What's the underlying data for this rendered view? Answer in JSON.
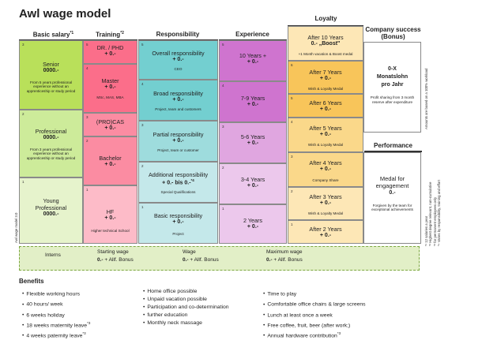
{
  "title": "Awl wage model",
  "headers": {
    "basic": "Basic salary",
    "basic_sup": "*1",
    "training": "Training",
    "training_sup": "*2",
    "responsibility": "Responsibility",
    "experience": "Experience",
    "loyalty": "Loyalty",
    "company_success_line1": "Company success",
    "company_success_line2": "(Bonus)",
    "performance": "Performance"
  },
  "basic": [
    {
      "level": "3",
      "title": "Senior",
      "value": "0000.-",
      "desc": "From 5 years professional experience without an apprenticeship or study period"
    },
    {
      "level": "2",
      "title": "Professional",
      "value": "0000.-",
      "desc": "From 3 years professional experience without an apprenticeship or study period"
    },
    {
      "level": "1",
      "title": "Young Professional",
      "value": "0000.-",
      "desc": ""
    }
  ],
  "training": [
    {
      "level": "5",
      "title": "DR. / PHD",
      "value": "+ 0.-",
      "desc": ""
    },
    {
      "level": "4",
      "title": "Master",
      "value": "+ 0.-",
      "desc": "MSc, MAS, MBA"
    },
    {
      "level": "3",
      "title": "(PRO)CAS",
      "value": "+ 0.-",
      "desc": ""
    },
    {
      "level": "2",
      "title": "Bachelor",
      "value": "+ 0.-",
      "desc": ""
    },
    {
      "level": "1",
      "title": "HF",
      "value": "+ 0.-",
      "desc": "Higher technical School"
    }
  ],
  "responsibility": [
    {
      "level": "5",
      "title": "Overall responsibility",
      "value": "+ 0.-",
      "desc": "CEO"
    },
    {
      "level": "4",
      "title": "Broad responsibility",
      "value": "+ 0.-",
      "desc": "Project, team and customers"
    },
    {
      "level": "3",
      "title": "Partial responsibility",
      "value": "+ 0.-",
      "desc": "Project, team or customer"
    },
    {
      "level": "2",
      "title": "Additional responsibility",
      "value": "+ 0.- bis 0.-",
      "value_sup": "*4",
      "desc": "Special Qualifications"
    },
    {
      "level": "1",
      "title": "Basic responsibility",
      "value": "+ 0.-",
      "desc": "Project"
    }
  ],
  "experience": [
    {
      "level": "5",
      "title": "10 Years +",
      "value": "+ 0.-"
    },
    {
      "level": "4",
      "title": "7-9 Years",
      "value": "+ 0.-"
    },
    {
      "level": "3",
      "title": "5-6 Years",
      "value": "+ 0.-"
    },
    {
      "level": "2",
      "title": "3-4 Years",
      "value": "+ 0.-"
    },
    {
      "level": "1",
      "title": "2 Years",
      "value": "+ 0.-"
    }
  ],
  "loyalty": [
    {
      "level": "",
      "title": "After 10 Years",
      "value": "0.- „Boost\"",
      "desc": "+1 Month vacation & Boost medal"
    },
    {
      "level": "6",
      "title": "After 7 Years",
      "value": "+ 0.-",
      "desc": "Wish & Loyalty Medal"
    },
    {
      "level": "5",
      "title": "After 6 Years",
      "value": "+ 0.-",
      "desc": ""
    },
    {
      "level": "4",
      "title": "After 5 Years",
      "value": "+ 0.-",
      "desc": "Wish & Loyalty Medal"
    },
    {
      "level": "3",
      "title": "After 4 Years",
      "value": "+ 0.-",
      "desc": "Company Share"
    },
    {
      "level": "2",
      "title": "After 3 Years",
      "value": "+ 0.-",
      "desc": "Wish & Loyalty Medal"
    },
    {
      "level": "1",
      "title": "After 2 Years",
      "value": "+ 0.-",
      "desc": ""
    }
  ],
  "company_success": {
    "amount": "0-X",
    "line2": "Monatslohn",
    "line3": "pro Jahr",
    "desc": "Profit sharing from 3 month reserve after expenditure",
    "side_note": "Amounts are based on a 100% workload"
  },
  "performance": {
    "title": "Medal for engagement",
    "value": "0.-",
    "desc": "Forgiven by the team for exceptional achievements"
  },
  "footnotes": [
    "*¹ 12 salaries a year",
    "*² Highest degree relevant, non-cumulative",
    "*³ for permanent employees only",
    "*⁴ Varies by responsibility, training and effort"
  ],
  "left_side_note": "Awl wage model 3.0",
  "bottom": {
    "interns": "Interns",
    "starting_label": "Starting wage",
    "starting_value": "0.-",
    "starting_suffix": " + Allf. Bonus",
    "wage_label": "Wage",
    "wage_value": "0.-",
    "wage_suffix": " + Allf. Bonus",
    "max_label": "Maximum wage",
    "max_value": "0.-",
    "max_suffix": " + Allf. Bonus"
  },
  "benefits": {
    "title": "Benefits",
    "col1": [
      "Flexible working hours",
      "40 hours/ week",
      "6 weeks holiday",
      "18 weeks maternity leave",
      "4 weeks paternity leave"
    ],
    "col1_sup": [
      "",
      "",
      "",
      "*3",
      "*3"
    ],
    "col2": [
      "Home office possible",
      "Unpaid vacation possible",
      "Participation and co-determination",
      "further education",
      "Monthly neck massage"
    ],
    "col3": [
      "Time to play",
      "Comfortable office chairs & large screens",
      "Lunch at least once a week",
      "Free coffee, fruit, beer (after work;)",
      "Annual hardware contribution"
    ],
    "col3_sup": [
      "",
      "",
      "",
      "",
      "*3"
    ]
  },
  "colors": {
    "basic": "#b9e05a",
    "training": "#fb6e8a",
    "responsibility": "#73cfd0",
    "experience": "#cf74cf",
    "loyalty": "#f8c55a",
    "bottom_bar": "#e2efc7"
  }
}
